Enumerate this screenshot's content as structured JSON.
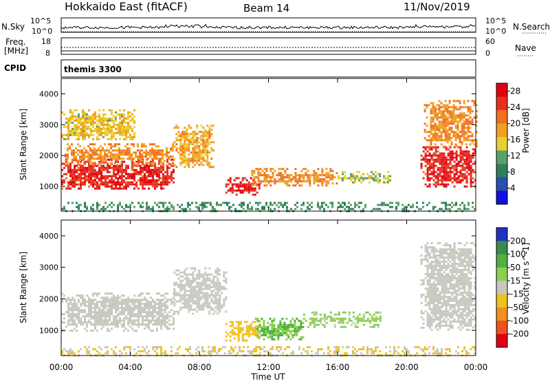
{
  "header": {
    "station": "Hokkaido East (fitACF)",
    "beam": "Beam 14",
    "date": "11/Nov/2019"
  },
  "nsky_panel": {
    "left_label": "N.Sky",
    "right_label": "N.Search",
    "left_ticks": [
      "10^5",
      "10^0"
    ],
    "right_ticks": [
      "10^5",
      "10^0"
    ]
  },
  "freq_panel": {
    "left_label_1": "Freq.",
    "left_label_2": "[MHz]",
    "right_label": "Nave",
    "left_ticks": [
      "18",
      "8"
    ],
    "right_ticks": [
      "60",
      "0"
    ]
  },
  "cpid_panel": {
    "label": "CPID",
    "program": "themis 3300"
  },
  "colors": {
    "power_scale": [
      "#1010e0",
      "#2a4fb0",
      "#2f7f5a",
      "#5aa06a",
      "#e8d030",
      "#f0a020",
      "#f07020",
      "#e83020",
      "#e00010"
    ],
    "velocity_scale": [
      "#e00010",
      "#f05020",
      "#f09020",
      "#f0c020",
      "#c8c8c0",
      "#8cd050",
      "#50b040",
      "#3a8a50",
      "#2030c0"
    ]
  },
  "chart_data": [
    {
      "type": "heatmap",
      "title": "",
      "xlabel": "Time UT",
      "ylabel": "Slant Range [km]",
      "x_ticks": [
        "00:00",
        "04:00",
        "08:00",
        "12:00",
        "16:00",
        "20:00",
        "00:00"
      ],
      "xlim_hours": [
        0,
        24
      ],
      "y_ticks": [
        1000,
        2000,
        3000,
        4000
      ],
      "ylim": [
        200,
        4500
      ],
      "colorbar": {
        "label": "Power [dB]",
        "ticks": [
          4,
          8,
          12,
          16,
          20,
          24,
          28
        ],
        "range": [
          0,
          30
        ]
      },
      "regions": [
        {
          "t0": 0.0,
          "t1": 6.5,
          "r0": 900,
          "r1": 1900,
          "value": 26
        },
        {
          "t0": 0.2,
          "t1": 6.5,
          "r0": 1700,
          "r1": 2400,
          "value": 20
        },
        {
          "t0": 0.0,
          "t1": 4.2,
          "r0": 2500,
          "r1": 3500,
          "value": 16
        },
        {
          "t0": 6.5,
          "t1": 8.8,
          "r0": 1600,
          "r1": 3000,
          "value": 18
        },
        {
          "t0": 9.5,
          "t1": 11.5,
          "r0": 700,
          "r1": 1300,
          "value": 27
        },
        {
          "t0": 11.0,
          "t1": 16.0,
          "r0": 1000,
          "r1": 1600,
          "value": 20
        },
        {
          "t0": 16.0,
          "t1": 19.0,
          "r0": 1100,
          "r1": 1500,
          "value": 14
        },
        {
          "t0": 20.8,
          "t1": 24.0,
          "r0": 1000,
          "r1": 2300,
          "value": 26
        },
        {
          "t0": 21.0,
          "t1": 24.0,
          "r0": 2300,
          "r1": 3800,
          "value": 20
        },
        {
          "t0": 0.0,
          "t1": 24.0,
          "r0": 200,
          "r1": 500,
          "value": 10
        }
      ]
    },
    {
      "type": "heatmap",
      "title": "",
      "xlabel": "Time UT",
      "ylabel": "Slant Range [km]",
      "x_ticks": [
        "00:00",
        "04:00",
        "08:00",
        "12:00",
        "16:00",
        "20:00",
        "00:00"
      ],
      "xlim_hours": [
        0,
        24
      ],
      "y_ticks": [
        1000,
        2000,
        3000,
        4000
      ],
      "ylim": [
        200,
        4500
      ],
      "colorbar": {
        "label": "Velocity [m s^-1]",
        "ticks": [
          200,
          100,
          50,
          15,
          -15,
          -50,
          -100,
          -200
        ],
        "range": [
          -250,
          250
        ]
      },
      "regions": [
        {
          "t0": 0.0,
          "t1": 6.5,
          "r0": 1000,
          "r1": 2200,
          "value": 0
        },
        {
          "t0": 6.5,
          "t1": 9.5,
          "r0": 1500,
          "r1": 3000,
          "value": 0
        },
        {
          "t0": 11.2,
          "t1": 14.0,
          "r0": 700,
          "r1": 1400,
          "value": 80
        },
        {
          "t0": 14.0,
          "t1": 18.5,
          "r0": 1100,
          "r1": 1600,
          "value": 40
        },
        {
          "t0": 9.5,
          "t1": 11.5,
          "r0": 700,
          "r1": 1300,
          "value": -60
        },
        {
          "t0": 20.8,
          "t1": 24.0,
          "r0": 1000,
          "r1": 3800,
          "value": 0
        },
        {
          "t0": 0.0,
          "t1": 24.0,
          "r0": 200,
          "r1": 500,
          "value": -30
        }
      ]
    }
  ]
}
